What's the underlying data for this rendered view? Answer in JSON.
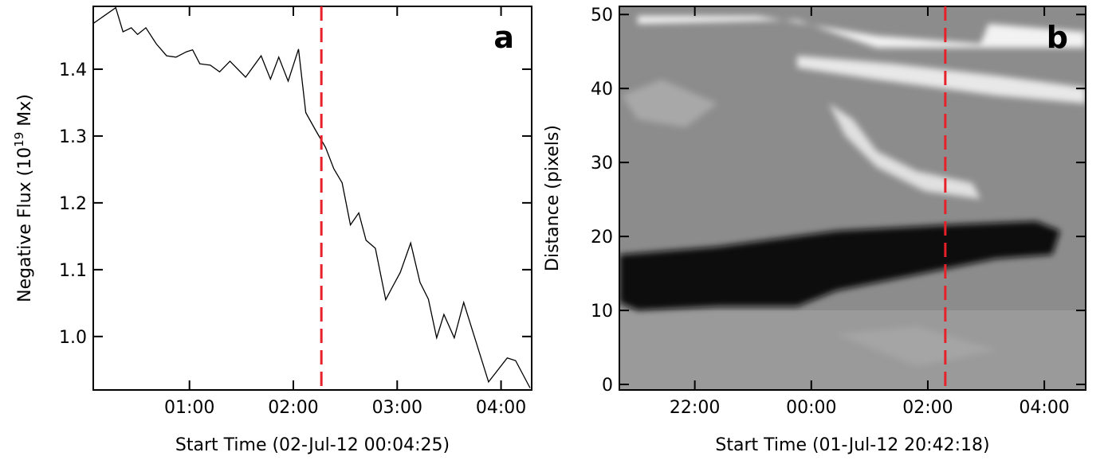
{
  "chart_data": [
    {
      "type": "line",
      "annotation": "a",
      "xlabel": "Start Time (02-Jul-12 00:04:25)",
      "ylabel": {
        "text": "Negative Flux (10",
        "sup": "19",
        "rest": " Mx)"
      },
      "xlim": [
        0.0736,
        4.295
      ],
      "ylim": [
        0.92,
        1.494
      ],
      "xticks": [
        {
          "value": 1,
          "label": "01:00"
        },
        {
          "value": 2,
          "label": "02:00"
        },
        {
          "value": 3,
          "label": "03:00"
        },
        {
          "value": 4,
          "label": "04:00"
        }
      ],
      "yticks": [
        {
          "value": 1.0,
          "label": "1.0"
        },
        1.1,
        1.2,
        1.3,
        {
          "value": 1.4,
          "label": "1.4"
        }
      ],
      "marker_line": {
        "x": 2.27,
        "color": "#e8202a"
      },
      "series": [
        {
          "color": "#000000",
          "x": [
            0.07,
            0.29,
            0.36,
            0.44,
            0.5,
            0.58,
            0.68,
            0.78,
            0.87,
            0.97,
            1.03,
            1.1,
            1.2,
            1.29,
            1.39,
            1.54,
            1.69,
            1.78,
            1.86,
            1.95,
            2.05,
            2.12,
            2.22,
            2.31,
            2.39,
            2.47,
            2.55,
            2.63,
            2.7,
            2.79,
            2.89,
            2.95,
            3.03,
            3.13,
            3.22,
            3.3,
            3.38,
            3.45,
            3.55,
            3.64,
            3.88,
            4.06,
            4.14,
            4.28
          ],
          "values": [
            1.468,
            1.492,
            1.456,
            1.462,
            1.452,
            1.462,
            1.438,
            1.42,
            1.418,
            1.426,
            1.429,
            1.408,
            1.406,
            1.396,
            1.412,
            1.388,
            1.42,
            1.385,
            1.418,
            1.382,
            1.43,
            1.335,
            1.307,
            1.283,
            1.251,
            1.23,
            1.167,
            1.185,
            1.144,
            1.132,
            1.055,
            1.073,
            1.096,
            1.14,
            1.081,
            1.056,
            0.998,
            1.033,
            0.998,
            1.051,
            0.932,
            0.968,
            0.964,
            0.923
          ]
        }
      ]
    },
    {
      "type": "image",
      "annotation": "b",
      "xlabel": "Start Time (01-Jul-12 20:42:18)",
      "ylabel": "Distance (pixels)",
      "xlim": [
        20.705,
        28.71
      ],
      "ylim": [
        -0.75,
        51.1
      ],
      "xticks": [
        {
          "value": 22,
          "label": "22:00"
        },
        {
          "value": 24,
          "label": "00:00"
        },
        {
          "value": 26,
          "label": "02:00"
        },
        {
          "value": 28,
          "label": "04:00"
        }
      ],
      "yticks": [
        0,
        10,
        20,
        30,
        40,
        50
      ],
      "marker_line": {
        "x": 26.3,
        "color": "#e8202a"
      }
    }
  ]
}
